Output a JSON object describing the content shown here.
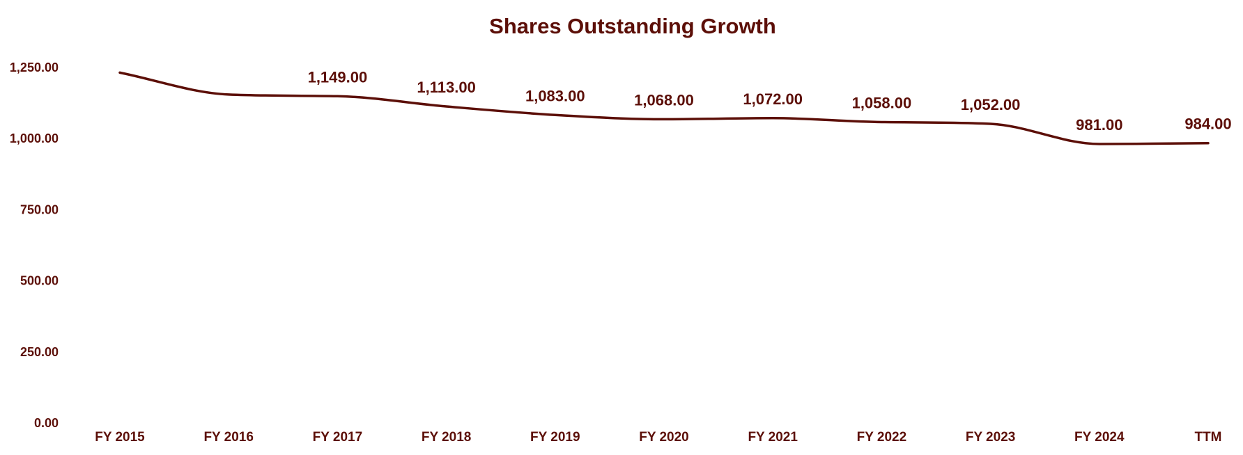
{
  "colors": {
    "primary": "#5c0f08",
    "background": "#ffffff"
  },
  "chart_data": {
    "type": "line",
    "title": "Shares Outstanding Growth",
    "xlabel": "",
    "ylabel": "",
    "categories": [
      "FY 2015",
      "FY 2016",
      "FY 2017",
      "FY 2018",
      "FY 2019",
      "FY 2020",
      "FY 2021",
      "FY 2022",
      "FY 2023",
      "FY 2024",
      "TTM"
    ],
    "series": [
      {
        "values": [
          1232,
          1155,
          1149,
          1113,
          1083,
          1068,
          1072,
          1058,
          1052,
          981,
          984
        ],
        "data_labels": [
          "",
          "",
          "1,149.00",
          "1,113.00",
          "1,083.00",
          "1,068.00",
          "1,072.00",
          "1,058.00",
          "1,052.00",
          "981.00",
          "984.00"
        ]
      }
    ],
    "y_ticks": [
      "0.00",
      "250.00",
      "500.00",
      "750.00",
      "1,000.00",
      "1,250.00"
    ],
    "ylim": [
      0,
      1250
    ],
    "smooth": true,
    "grid": false,
    "legend": "none"
  }
}
